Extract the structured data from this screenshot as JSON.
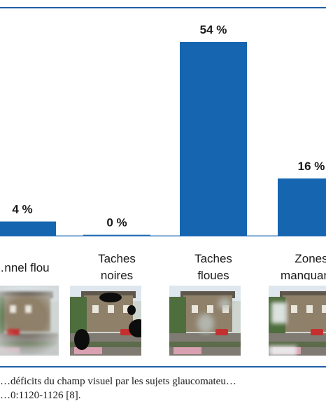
{
  "chart_data": {
    "type": "bar",
    "categories": [
      "…nnel flou",
      "Taches noires",
      "Taches floues",
      "Zones manquan…"
    ],
    "category_lines": [
      [
        "…nnel flou"
      ],
      [
        "Taches",
        "noires"
      ],
      [
        "Taches",
        "floues"
      ],
      [
        "Zones",
        "manquan…"
      ]
    ],
    "values": [
      4,
      0,
      54,
      16
    ],
    "value_labels": [
      "4 %",
      "0 %",
      "54 %",
      "16 %"
    ],
    "ylim": [
      0,
      54
    ],
    "grid": false,
    "legend": "none",
    "bar_color": "#1565b0"
  },
  "caption": {
    "line1": "…déficits du champ visuel par les sujets glaucomateu…",
    "line2": "…0:1120-1126 [8]."
  },
  "thumbnails": [
    {
      "effect": "tunnel-blur"
    },
    {
      "effect": "black-spots"
    },
    {
      "effect": "blurred-spots"
    },
    {
      "effect": "missing-zones"
    }
  ],
  "colors": {
    "bar": "#1565b0",
    "frame": "#1f5fa8"
  }
}
